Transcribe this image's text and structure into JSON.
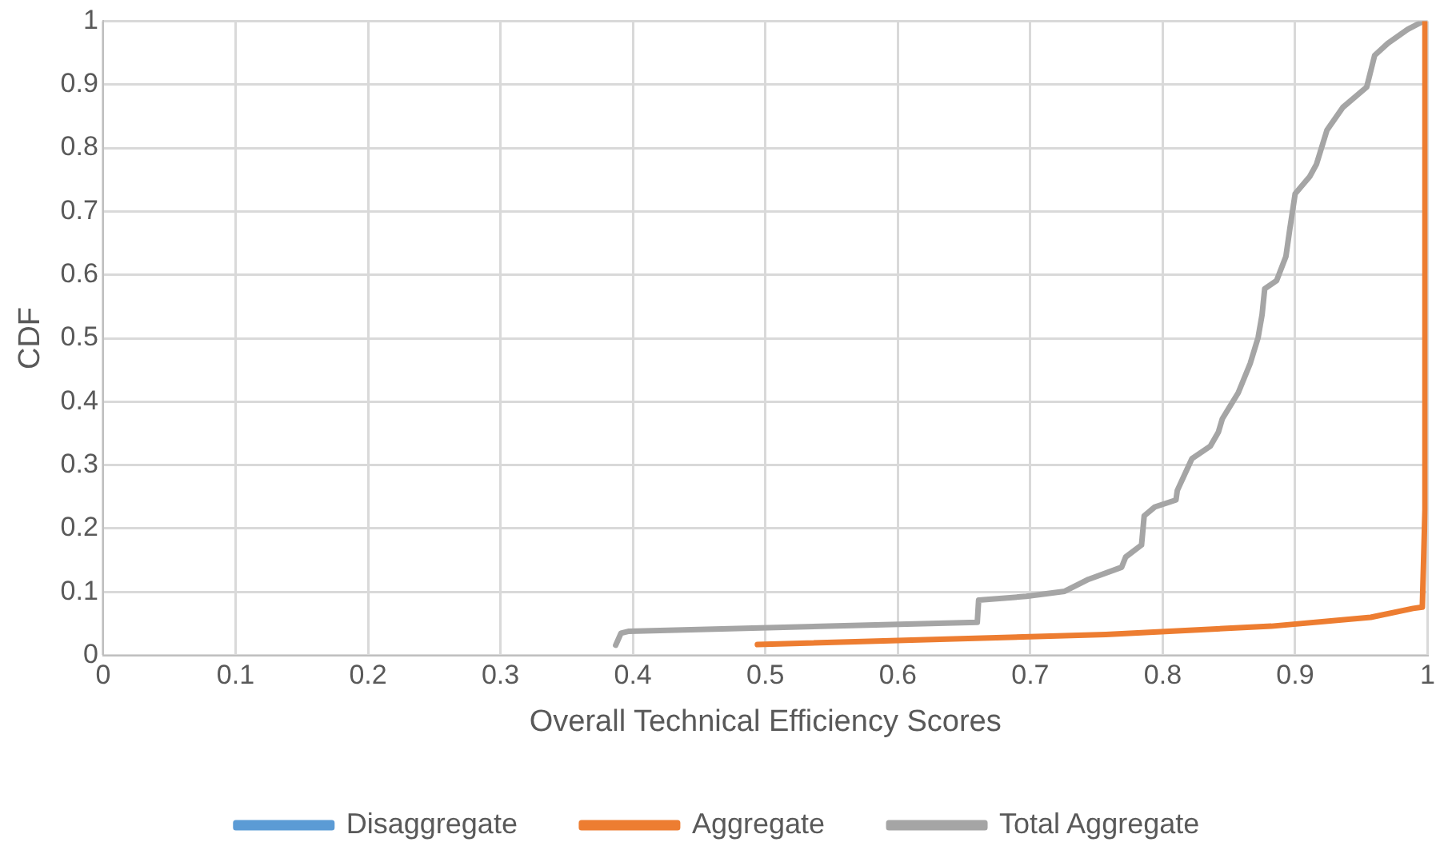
{
  "chart_data": {
    "type": "line",
    "xlabel": "Overall Technical Efficiency Scores",
    "ylabel": "CDF",
    "xlim": [
      0,
      1
    ],
    "xticks": [
      0,
      0.1,
      0.2,
      0.3,
      0.4,
      0.5,
      0.6,
      0.7,
      0.8,
      0.9,
      1
    ],
    "ylim": [
      0,
      1
    ],
    "yticks": [
      0,
      0.1,
      0.2,
      0.3,
      0.4,
      0.5,
      0.6,
      0.7,
      0.8,
      0.9,
      1
    ],
    "grid": true,
    "legend": "bottom",
    "marker": "none",
    "line_style": "solid",
    "series": [
      {
        "name": "Disaggregate",
        "color": "#5b9bd5"
      },
      {
        "name": "Aggregate",
        "color": "#ed7d31",
        "x": [
          0.494,
          0.757,
          0.882,
          0.957,
          0.989,
          0.996,
          0.998,
          0.998
        ],
        "values": [
          0.017,
          0.033,
          0.046,
          0.06,
          0.074,
          0.076,
          0.23,
          1
        ]
      },
      {
        "name": "Total Aggregate",
        "color": "#a5a5a5",
        "x": [
          0.387,
          0.391,
          0.397,
          0.66,
          0.661,
          0.697,
          0.726,
          0.744,
          0.769,
          0.772,
          0.784,
          0.786,
          0.794,
          0.81,
          0.811,
          0.822,
          0.836,
          0.842,
          0.845,
          0.857,
          0.866,
          0.872,
          0.875,
          0.877,
          0.886,
          0.893,
          0.896,
          0.9,
          0.911,
          0.916,
          0.924,
          0.936,
          0.954,
          0.96,
          0.97,
          0.985,
          0.997
        ],
        "values": [
          0.016,
          0.035,
          0.038,
          0.052,
          0.087,
          0.093,
          0.101,
          0.12,
          0.139,
          0.155,
          0.174,
          0.22,
          0.234,
          0.245,
          0.26,
          0.31,
          0.33,
          0.352,
          0.373,
          0.414,
          0.46,
          0.501,
          0.537,
          0.578,
          0.591,
          0.629,
          0.673,
          0.728,
          0.755,
          0.774,
          0.828,
          0.864,
          0.896,
          0.946,
          0.965,
          0.987,
          1
        ]
      }
    ]
  }
}
